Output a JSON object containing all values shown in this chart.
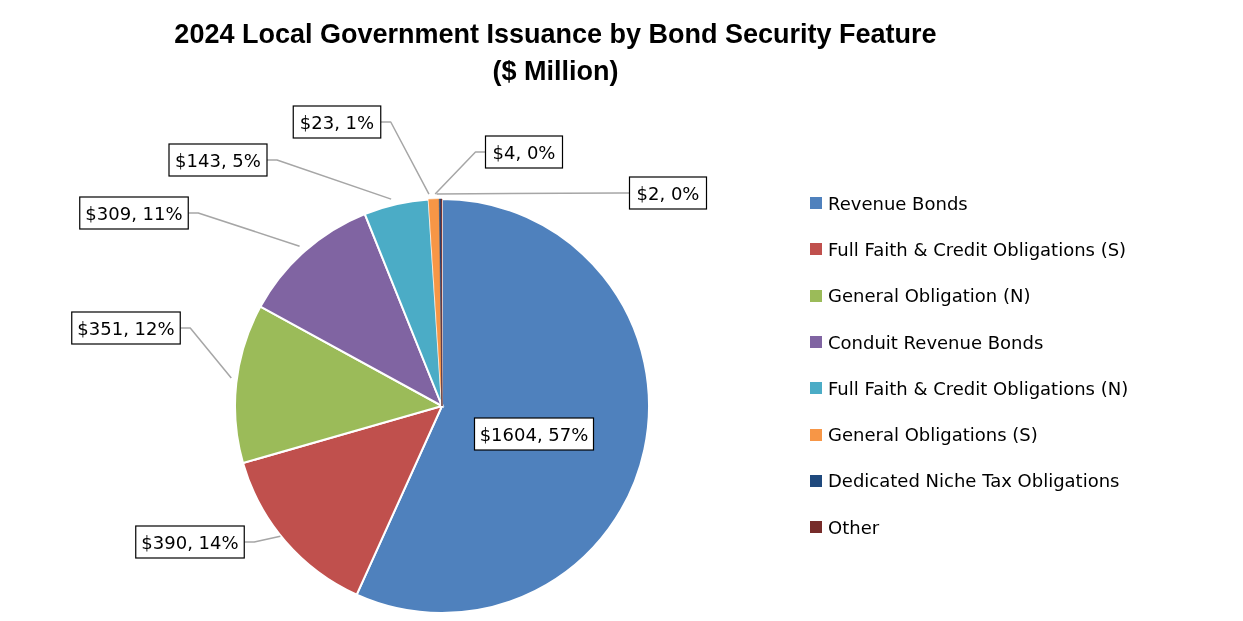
{
  "chart_data": {
    "type": "pie",
    "title": "2024 Local Government Issuance by Bond Security Feature\n($ Million)",
    "categories": [
      "Revenue Bonds",
      "Full Faith & Credit Obligations (S)",
      "General Obligation (N)",
      "Conduit Revenue Bonds",
      "Full Faith & Credit Obligations (N)",
      "General Obligations (S)",
      "Dedicated Niche Tax Obligations",
      "Other"
    ],
    "values": [
      1604,
      390,
      351,
      309,
      143,
      23,
      4,
      2
    ],
    "colors": [
      "#4f81bd",
      "#c0504d",
      "#9bbb59",
      "#8064a2",
      "#4bacc6",
      "#f79646",
      "#1f497d",
      "#772c2a"
    ],
    "value_labels": [
      "$1604, 57%",
      "$390, 14%",
      "$351, 12%",
      "$309, 11%",
      "$143, 5%",
      "$23, 1%",
      "$4, 0%",
      "$2, 0%"
    ],
    "legend": "right"
  }
}
